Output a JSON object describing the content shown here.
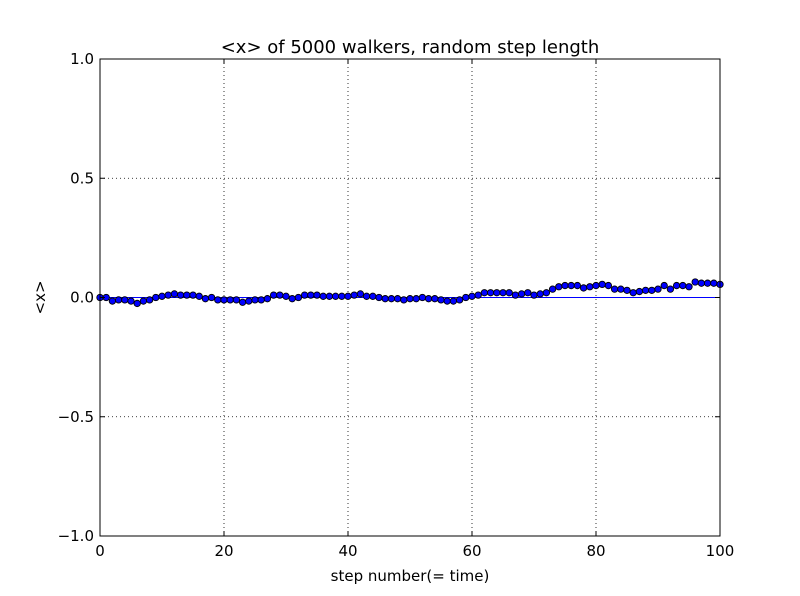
{
  "chart_data": {
    "type": "scatter",
    "title": "<x> of 5000 walkers, random step length",
    "xlabel": "step number(= time)",
    "ylabel": "<x>",
    "xlim": [
      0,
      100
    ],
    "ylim": [
      -1.0,
      1.0
    ],
    "x_ticks": [
      0,
      20,
      40,
      60,
      80,
      100
    ],
    "x_tick_labels": [
      "0",
      "20",
      "40",
      "60",
      "80",
      "100"
    ],
    "y_ticks": [
      1.0,
      0.5,
      0.0,
      -0.5,
      -1.0
    ],
    "y_tick_labels": [
      "1.0",
      "0.5",
      "0.0",
      "−0.5",
      "−1.0"
    ],
    "grid": true,
    "colors": {
      "marker": "#0000ff",
      "line": "#0000ff",
      "marker_edge": "#000000"
    },
    "series": [
      {
        "marker": "circle",
        "x": [
          0,
          1,
          2,
          3,
          4,
          5,
          6,
          7,
          8,
          9,
          10,
          11,
          12,
          13,
          14,
          15,
          16,
          17,
          18,
          19,
          20,
          21,
          22,
          23,
          24,
          25,
          26,
          27,
          28,
          29,
          30,
          31,
          32,
          33,
          34,
          35,
          36,
          37,
          38,
          39,
          40,
          41,
          42,
          43,
          44,
          45,
          46,
          47,
          48,
          49,
          50,
          51,
          52,
          53,
          54,
          55,
          56,
          57,
          58,
          59,
          60,
          61,
          62,
          63,
          64,
          65,
          66,
          67,
          68,
          69,
          70,
          71,
          72,
          73,
          74,
          75,
          76,
          77,
          78,
          79,
          80,
          81,
          82,
          83,
          84,
          85,
          86,
          87,
          88,
          89,
          90,
          91,
          92,
          93,
          94,
          95,
          96,
          97,
          98,
          99,
          100
        ],
        "y": [
          0.0,
          0.0,
          -0.015,
          -0.01,
          -0.01,
          -0.015,
          -0.025,
          -0.015,
          -0.01,
          0.0,
          0.005,
          0.01,
          0.015,
          0.01,
          0.01,
          0.01,
          0.005,
          -0.005,
          0.0,
          -0.01,
          -0.01,
          -0.01,
          -0.01,
          -0.02,
          -0.015,
          -0.01,
          -0.01,
          -0.005,
          0.01,
          0.01,
          0.005,
          -0.005,
          0.0,
          0.01,
          0.01,
          0.01,
          0.005,
          0.005,
          0.005,
          0.005,
          0.005,
          0.01,
          0.015,
          0.005,
          0.005,
          0.0,
          -0.005,
          -0.005,
          -0.005,
          -0.01,
          -0.005,
          -0.005,
          0.0,
          -0.005,
          -0.005,
          -0.01,
          -0.015,
          -0.015,
          -0.01,
          0.0,
          0.005,
          0.01,
          0.02,
          0.02,
          0.02,
          0.02,
          0.02,
          0.01,
          0.015,
          0.02,
          0.01,
          0.015,
          0.02,
          0.035,
          0.045,
          0.05,
          0.05,
          0.05,
          0.04,
          0.045,
          0.05,
          0.055,
          0.05,
          0.035,
          0.035,
          0.03,
          0.02,
          0.025,
          0.03,
          0.03,
          0.035,
          0.05,
          0.035,
          0.05,
          0.05,
          0.045,
          0.065,
          0.06,
          0.06,
          0.06,
          0.055
        ]
      },
      {
        "marker": "line",
        "x": [
          0,
          100
        ],
        "y": [
          0.0,
          0.0
        ]
      }
    ]
  }
}
